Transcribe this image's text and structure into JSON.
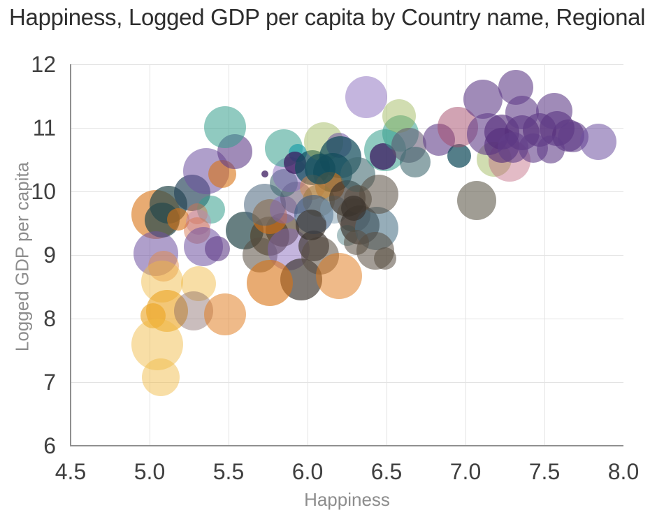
{
  "title": "Happiness, Logged GDP per capita by Country name, Regional indi…",
  "chart_data": {
    "type": "scatter",
    "title": "Happiness, Logged GDP per capita by Country name, Regional indi…",
    "xlabel": "Happiness",
    "ylabel": "Logged GDP per capita",
    "xlim": [
      4.5,
      8.0
    ],
    "ylim": [
      6,
      12
    ],
    "x_ticks": [
      "4.5",
      "5.0",
      "5.5",
      "6.0",
      "6.5",
      "7.0",
      "7.5",
      "8.0"
    ],
    "y_ticks": [
      "6",
      "7",
      "8",
      "9",
      "10",
      "11",
      "12"
    ],
    "grid": true,
    "legend_position": "none",
    "encoding": "x=Happiness, y=Logged GDP per capita, bubble size and color by Country name / Regional indicator",
    "palette": {
      "orange": "rgba(217,115,20,0.60)",
      "orange2": "rgba(224,122,28,0.52)",
      "paleorange": "rgba(228,138,66,0.48)",
      "salmon": "rgba(214,112,70,0.45)",
      "paleyellow": "rgba(240,186,70,0.48)",
      "gold": "rgba(235,165,35,0.62)",
      "graymauve": "rgba(128,98,98,0.42)",
      "teal": "rgba(52,158,140,0.55)",
      "cyan": "rgba(28,158,168,0.68)",
      "tealgray": "rgba(88,136,140,0.50)",
      "darkteal": "rgba(18,76,92,0.72)",
      "darkslate": "rgba(38,72,76,0.70)",
      "darkslate2": "rgba(40,70,92,0.68)",
      "slateteal": "rgba(62,104,110,0.58)",
      "slateblue": "rgba(56,90,128,0.60)",
      "bluegray": "rgba(72,100,124,0.55)",
      "lightbluegray": "rgba(126,156,176,0.50)",
      "steelblue": "rgba(74,114,134,0.58)",
      "gray": "rgba(88,76,64,0.55)",
      "darkgray": "rgba(56,48,42,0.66)",
      "grayolive": "rgba(92,86,70,0.58)",
      "darkbrown": "rgba(78,58,32,0.62)",
      "tan": "rgba(150,120,60,0.52)",
      "lightgreen": "rgba(152,180,82,0.45)",
      "lightpurple": "rgba(110,80,160,0.55)",
      "lavender": "rgba(132,100,186,0.48)",
      "purple": "rgba(96,62,136,0.60)",
      "darkpurple": "rgba(86,46,124,0.63)",
      "richpurple": "rgba(58,24,94,0.74)",
      "graypurple": "rgba(96,82,110,0.55)",
      "pinklav": "rgba(188,132,178,0.45)",
      "rose": "rgba(164,72,104,0.50)",
      "rosepale": "rgba(188,92,118,0.42)"
    },
    "points": [
      [
        5.04,
        9.64,
        35,
        "orange"
      ],
      [
        5.12,
        9.79,
        27,
        "darkslate"
      ],
      [
        5.27,
        9.98,
        26,
        "darkslate2"
      ],
      [
        5.08,
        9.55,
        25,
        "darkslate"
      ],
      [
        5.18,
        9.56,
        16,
        "orange"
      ],
      [
        5.39,
        9.71,
        20,
        "teal"
      ],
      [
        5.3,
        9.65,
        15,
        "salmon"
      ],
      [
        5.31,
        9.52,
        18,
        "pinklav"
      ],
      [
        5.3,
        9.38,
        19,
        "salmon"
      ],
      [
        5.36,
        10.32,
        33,
        "lightpurple"
      ],
      [
        5.46,
        10.27,
        20,
        "orange"
      ],
      [
        5.54,
        10.63,
        25,
        "purple"
      ],
      [
        5.48,
        11.01,
        30,
        "teal"
      ],
      [
        5.04,
        9.02,
        32,
        "lightpurple"
      ],
      [
        5.09,
        8.82,
        22,
        "paleorange"
      ],
      [
        5.34,
        9.13,
        28,
        "lightpurple"
      ],
      [
        5.43,
        9.1,
        18,
        "purple"
      ],
      [
        5.08,
        8.58,
        30,
        "paleyellow"
      ],
      [
        5.31,
        8.55,
        25,
        "paleyellow"
      ],
      [
        5.11,
        8.12,
        30,
        "gold"
      ],
      [
        5.02,
        8.04,
        18,
        "gold"
      ],
      [
        5.28,
        8.12,
        28,
        "graymauve"
      ],
      [
        5.48,
        8.07,
        30,
        "orange2"
      ],
      [
        5.05,
        7.59,
        37,
        "paleyellow"
      ],
      [
        5.07,
        7.08,
        27,
        "paleyellow"
      ],
      [
        5.6,
        9.38,
        27,
        "darkslate"
      ],
      [
        5.76,
        9.3,
        28,
        "darkbrown"
      ],
      [
        5.84,
        9.4,
        24,
        "darkbrown"
      ],
      [
        5.7,
        9.0,
        25,
        "gray"
      ],
      [
        5.88,
        9.09,
        30,
        "lavender"
      ],
      [
        5.76,
        9.6,
        25,
        "orange"
      ],
      [
        5.73,
        9.79,
        30,
        "bluegray"
      ],
      [
        5.85,
        9.71,
        20,
        "lavender"
      ],
      [
        5.93,
        9.9,
        23,
        "graypurple"
      ],
      [
        5.85,
        10.13,
        20,
        "slateteal"
      ],
      [
        5.89,
        10.26,
        25,
        "lavender"
      ],
      [
        5.73,
        10.27,
        5,
        "richpurple"
      ],
      [
        5.85,
        10.68,
        27,
        "teal"
      ],
      [
        5.94,
        10.6,
        13,
        "cyan"
      ],
      [
        5.92,
        10.45,
        16,
        "richpurple"
      ],
      [
        6.03,
        10.37,
        25,
        "darkteal"
      ],
      [
        5.96,
        8.62,
        30,
        "darkgray"
      ],
      [
        5.76,
        8.56,
        33,
        "orange"
      ],
      [
        6.04,
        9.14,
        22,
        "darkgray"
      ],
      [
        6.08,
        8.99,
        27,
        "gray"
      ],
      [
        6.1,
        10.78,
        28,
        "lightgreen"
      ],
      [
        6.2,
        10.73,
        18,
        "lightpurple"
      ],
      [
        6.21,
        10.54,
        30,
        "darkteal"
      ],
      [
        6.16,
        10.3,
        28,
        "darkteal"
      ],
      [
        6.14,
        10.08,
        21,
        "orange"
      ],
      [
        6.03,
        10.07,
        18,
        "paleorange"
      ],
      [
        6.07,
        9.86,
        23,
        "tan"
      ],
      [
        6.04,
        9.64,
        28,
        "slateblue"
      ],
      [
        6.02,
        9.47,
        22,
        "darkgray"
      ],
      [
        6.17,
        9.71,
        20,
        "lightbluegray"
      ],
      [
        6.25,
        9.89,
        26,
        "darkgray"
      ],
      [
        6.29,
        9.63,
        24,
        "gray"
      ],
      [
        6.08,
        10.35,
        22,
        "darkteal"
      ],
      [
        6.2,
        8.67,
        33,
        "orange2"
      ],
      [
        6.25,
        9.31,
        15,
        "tealgray"
      ],
      [
        6.32,
        10.26,
        25,
        "slateteal"
      ],
      [
        6.33,
        9.47,
        28,
        "darkgray"
      ],
      [
        6.44,
        9.42,
        31,
        "steelblue"
      ],
      [
        6.45,
        9.96,
        28,
        "gray"
      ],
      [
        6.32,
        9.88,
        20,
        "gray"
      ],
      [
        6.29,
        9.74,
        18,
        "darkgray"
      ],
      [
        6.43,
        9.07,
        27,
        "gray"
      ],
      [
        6.31,
        9.2,
        18,
        "gray"
      ],
      [
        6.49,
        8.95,
        16,
        "gray"
      ],
      [
        6.37,
        11.48,
        30,
        "lavender"
      ],
      [
        6.49,
        10.65,
        30,
        "teal"
      ],
      [
        6.48,
        10.55,
        19,
        "richpurple"
      ],
      [
        6.59,
        10.91,
        26,
        "teal"
      ],
      [
        6.58,
        11.19,
        24,
        "lightgreen"
      ],
      [
        6.64,
        10.73,
        25,
        "graypurple"
      ],
      [
        6.68,
        10.46,
        22,
        "slateteal"
      ],
      [
        6.83,
        10.81,
        23,
        "purple"
      ],
      [
        6.96,
        10.56,
        17,
        "darkteal"
      ],
      [
        6.95,
        11.01,
        29,
        "rose"
      ],
      [
        7.11,
        11.45,
        28,
        "purple"
      ],
      [
        7.32,
        11.64,
        25,
        "purple"
      ],
      [
        7.18,
        10.51,
        25,
        "lightgreen"
      ],
      [
        7.28,
        10.48,
        30,
        "rosepale"
      ],
      [
        7.07,
        9.86,
        28,
        "grayolive"
      ],
      [
        7.14,
        10.9,
        30,
        "purple"
      ],
      [
        7.23,
        10.93,
        25,
        "darkpurple"
      ],
      [
        7.23,
        10.73,
        25,
        "darkpurple"
      ],
      [
        7.36,
        10.92,
        25,
        "darkpurple"
      ],
      [
        7.47,
        10.97,
        24,
        "darkpurple"
      ],
      [
        7.58,
        10.99,
        25,
        "darkpurple"
      ],
      [
        7.65,
        10.88,
        23,
        "darkpurple"
      ],
      [
        7.68,
        10.86,
        22,
        "purple"
      ],
      [
        7.36,
        11.24,
        24,
        "purple"
      ],
      [
        7.56,
        11.26,
        26,
        "purple"
      ],
      [
        7.3,
        10.69,
        22,
        "purple"
      ],
      [
        7.43,
        10.68,
        21,
        "purple"
      ],
      [
        7.54,
        10.66,
        20,
        "purple"
      ],
      [
        7.84,
        10.78,
        26,
        "lightpurple"
      ]
    ]
  }
}
